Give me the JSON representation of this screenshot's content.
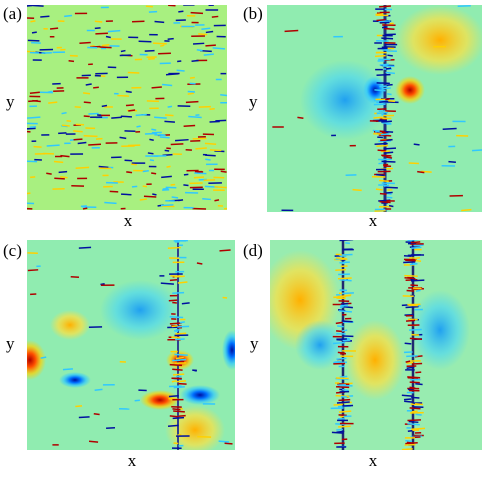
{
  "panels": [
    {
      "label": "(a)",
      "x_label": "x",
      "y_label": "y"
    },
    {
      "label": "(b)",
      "x_label": "x",
      "y_label": "y"
    },
    {
      "label": "(c)",
      "x_label": "x",
      "y_label": "y"
    },
    {
      "label": "(d)",
      "x_label": "x",
      "y_label": "y"
    }
  ]
}
